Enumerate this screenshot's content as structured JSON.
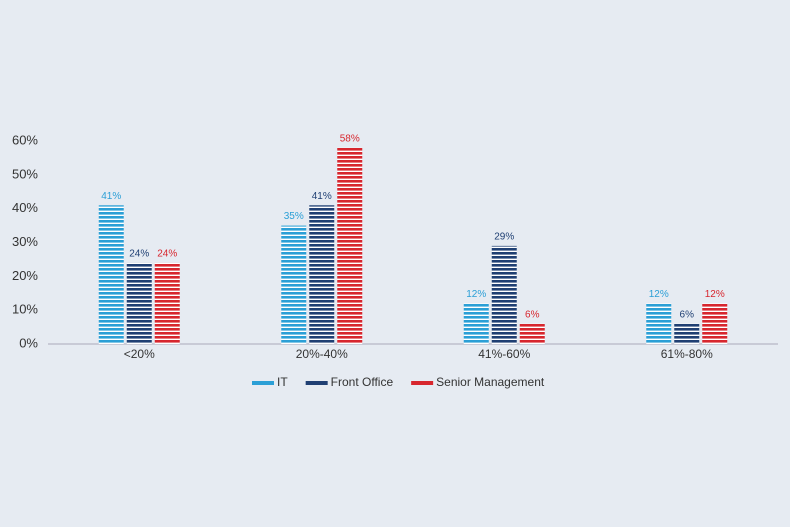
{
  "chart_data": {
    "type": "bar",
    "categories": [
      "<20%",
      "20%-40%",
      "41%-60%",
      "61%-80%"
    ],
    "series": [
      {
        "name": "IT",
        "color": "#2b9fd6",
        "values": [
          41,
          35,
          12,
          12
        ],
        "value_labels": [
          "41%",
          "35%",
          "12%",
          "12%"
        ]
      },
      {
        "name": "Front Office",
        "color": "#1f3f73",
        "values": [
          24,
          41,
          29,
          6
        ],
        "value_labels": [
          "24%",
          "41%",
          "29%",
          "6%"
        ]
      },
      {
        "name": "Senior Management",
        "color": "#d7262e",
        "values": [
          24,
          58,
          6,
          12
        ],
        "value_labels": [
          "24%",
          "58%",
          "6%",
          "12%"
        ]
      }
    ],
    "ylim": [
      0,
      60
    ],
    "yticks": [
      {
        "value": 0,
        "label": "0%"
      },
      {
        "value": 10,
        "label": "10%"
      },
      {
        "value": 20,
        "label": "20%"
      },
      {
        "value": 30,
        "label": "30%"
      },
      {
        "value": 40,
        "label": "40%"
      },
      {
        "value": 50,
        "label": "50%"
      },
      {
        "value": 60,
        "label": "60%"
      }
    ],
    "grid": false,
    "legend": "bottom"
  }
}
